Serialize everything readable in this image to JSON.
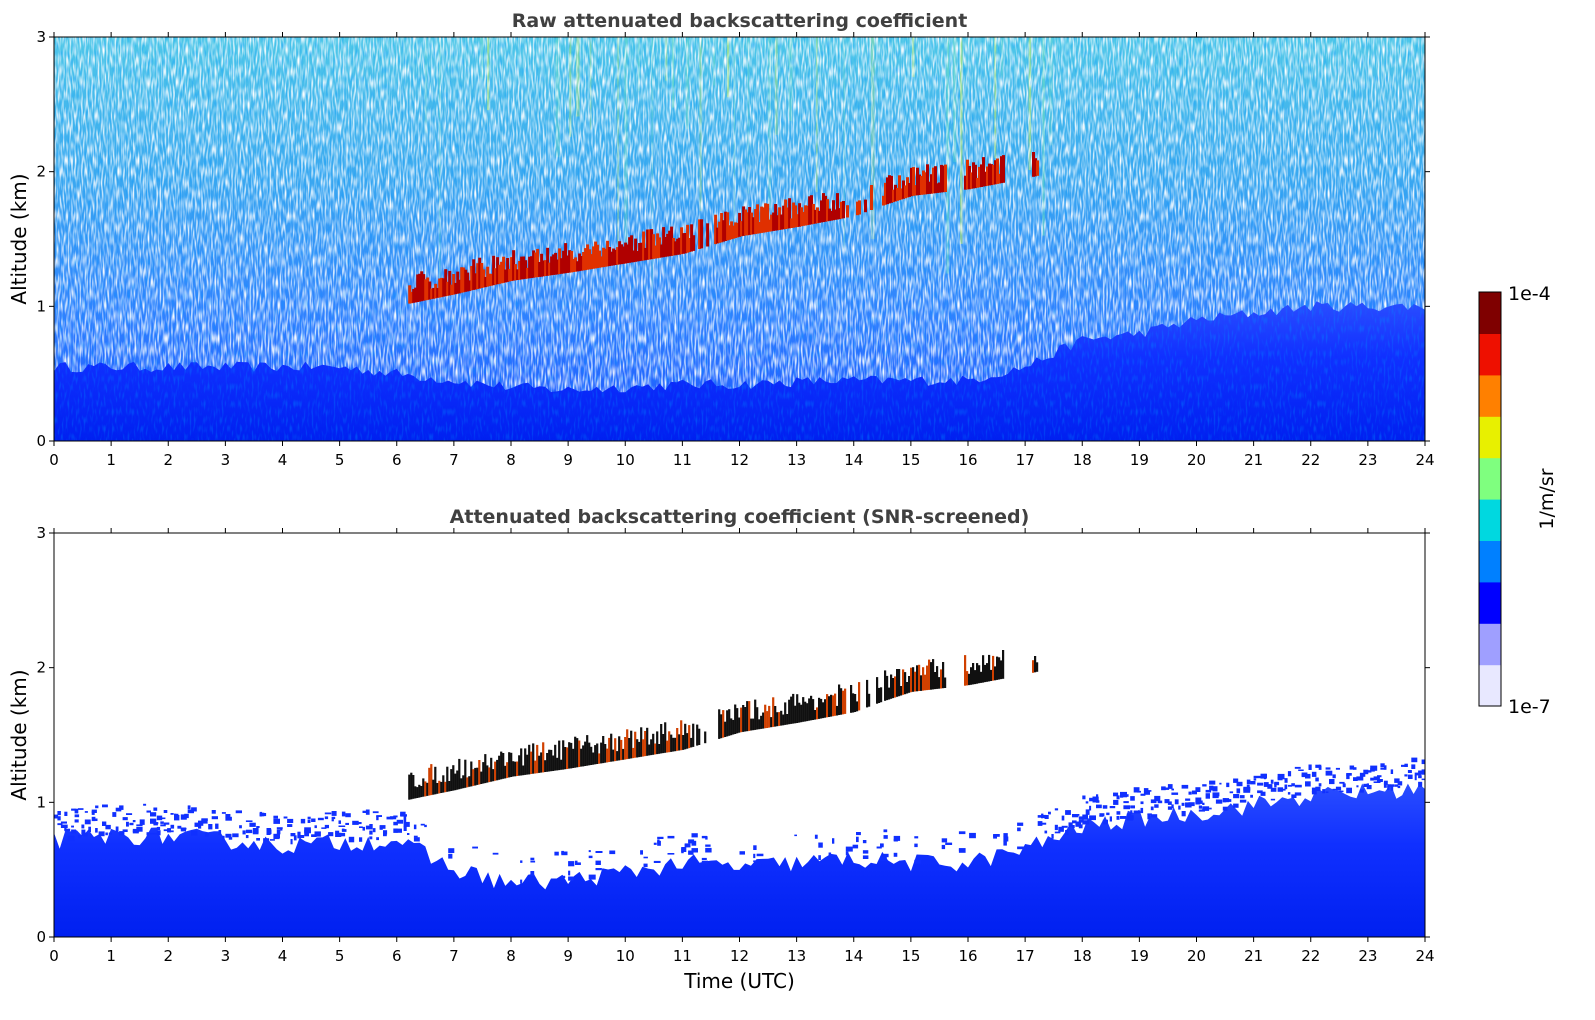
{
  "chart_data": [
    {
      "type": "heatmap",
      "title": "Raw attenuated backscattering coefficient",
      "xlabel": "",
      "ylabel": "Altitude (km)",
      "xlim": [
        0,
        24
      ],
      "ylim": [
        0,
        3
      ],
      "xticks": [
        "0",
        "1",
        "2",
        "3",
        "4",
        "5",
        "6",
        "7",
        "8",
        "9",
        "10",
        "11",
        "12",
        "13",
        "14",
        "15",
        "16",
        "17",
        "18",
        "19",
        "20",
        "21",
        "22",
        "23",
        "24"
      ],
      "yticks": [
        "0",
        "1",
        "2",
        "3"
      ],
      "color_scale": "log",
      "background": "#ffffff",
      "layers": [
        {
          "name": "boundary_layer",
          "points": [
            [
              0,
              0.55
            ],
            [
              1,
              0.55
            ],
            [
              2,
              0.55
            ],
            [
              3,
              0.55
            ],
            [
              4,
              0.55
            ],
            [
              5,
              0.55
            ],
            [
              6,
              0.5
            ],
            [
              7,
              0.45
            ],
            [
              8,
              0.4
            ],
            [
              9,
              0.38
            ],
            [
              10,
              0.4
            ],
            [
              11,
              0.42
            ],
            [
              12,
              0.42
            ],
            [
              13,
              0.44
            ],
            [
              14,
              0.45
            ],
            [
              15,
              0.45
            ],
            [
              16,
              0.45
            ],
            [
              17,
              0.55
            ],
            [
              18,
              0.75
            ],
            [
              19,
              0.8
            ],
            [
              20,
              0.9
            ],
            [
              21,
              0.95
            ],
            [
              22,
              1.0
            ],
            [
              23,
              1.0
            ],
            [
              24,
              1.0
            ]
          ]
        },
        {
          "name": "cloud",
          "points": [
            [
              6.2,
              1.05
            ],
            [
              7,
              1.12
            ],
            [
              8,
              1.22
            ],
            [
              9,
              1.28
            ],
            [
              10,
              1.35
            ],
            [
              11,
              1.42
            ],
            [
              12,
              1.55
            ],
            [
              13,
              1.62
            ],
            [
              14,
              1.7
            ],
            [
              14.5,
              1.78
            ],
            [
              15,
              1.85
            ],
            [
              16,
              1.9
            ],
            [
              17,
              1.98
            ],
            [
              17.2,
              2.0
            ]
          ]
        }
      ],
      "noise_floor": "present"
    },
    {
      "type": "heatmap",
      "title": "Attenuated backscattering coefficient (SNR-screened)",
      "xlabel": "Time (UTC)",
      "ylabel": "Altitude (km)",
      "xlim": [
        0,
        24
      ],
      "ylim": [
        0,
        3
      ],
      "xticks": [
        "0",
        "1",
        "2",
        "3",
        "4",
        "5",
        "6",
        "7",
        "8",
        "9",
        "10",
        "11",
        "12",
        "13",
        "14",
        "15",
        "16",
        "17",
        "18",
        "19",
        "20",
        "21",
        "22",
        "23",
        "24"
      ],
      "yticks": [
        "0",
        "1",
        "2",
        "3"
      ],
      "color_scale": "log",
      "background": "#ffffff",
      "layers": [
        {
          "name": "boundary_layer",
          "points": [
            [
              0,
              0.72
            ],
            [
              1,
              0.75
            ],
            [
              2,
              0.75
            ],
            [
              3,
              0.72
            ],
            [
              4,
              0.68
            ],
            [
              5,
              0.7
            ],
            [
              6,
              0.72
            ],
            [
              7,
              0.5
            ],
            [
              8,
              0.4
            ],
            [
              9,
              0.42
            ],
            [
              10,
              0.48
            ],
            [
              11,
              0.55
            ],
            [
              12,
              0.52
            ],
            [
              13,
              0.55
            ],
            [
              14,
              0.58
            ],
            [
              15,
              0.55
            ],
            [
              16,
              0.55
            ],
            [
              17,
              0.65
            ],
            [
              18,
              0.82
            ],
            [
              19,
              0.88
            ],
            [
              20,
              0.92
            ],
            [
              21,
              0.98
            ],
            [
              22,
              1.05
            ],
            [
              23,
              1.08
            ],
            [
              24,
              1.1
            ]
          ]
        },
        {
          "name": "cloud",
          "points": [
            [
              6.2,
              1.05
            ],
            [
              7,
              1.12
            ],
            [
              8,
              1.22
            ],
            [
              9,
              1.28
            ],
            [
              10,
              1.35
            ],
            [
              11,
              1.42
            ],
            [
              12,
              1.55
            ],
            [
              13,
              1.62
            ],
            [
              14,
              1.7
            ],
            [
              14.5,
              1.78
            ],
            [
              15,
              1.85
            ],
            [
              16,
              1.9
            ],
            [
              17,
              1.98
            ],
            [
              17.2,
              2.0
            ]
          ]
        }
      ],
      "noise_floor": "removed"
    }
  ],
  "colorbar": {
    "label": "1/m/sr",
    "max_label": "1e-4",
    "min_label": "1e-7",
    "colors": [
      "#e8e8ff",
      "#9f9fff",
      "#0000ff",
      "#0080ff",
      "#00d8e0",
      "#7fff7f",
      "#e8f000",
      "#ff8000",
      "#ee1000",
      "#7f0000"
    ]
  }
}
